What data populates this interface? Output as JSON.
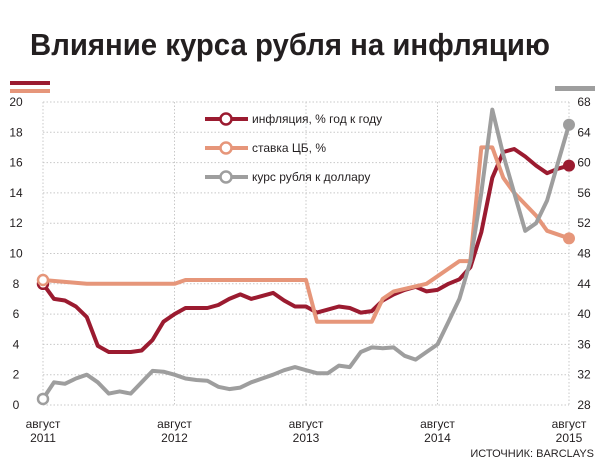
{
  "chart_data": {
    "type": "line",
    "title": "Влияние курса рубля на инфляцию",
    "source": "ИСТОЧНИК: BARCLAYS",
    "left_axis": {
      "ylim": [
        0,
        20
      ],
      "ticks": [
        "0",
        "2",
        "4",
        "6",
        "8",
        "10",
        "12",
        "14",
        "16",
        "18",
        "20"
      ]
    },
    "right_axis": {
      "ylim": [
        28,
        68
      ],
      "ticks": [
        "28",
        "32",
        "36",
        "40",
        "44",
        "48",
        "52",
        "56",
        "60",
        "64",
        "68"
      ]
    },
    "x_axis": {
      "range": [
        "2011-08",
        "2015-08"
      ],
      "ticks": [
        {
          "at": "2011-08",
          "line1": "август",
          "line2": "2011"
        },
        {
          "at": "2012-08",
          "line1": "август",
          "line2": "2012"
        },
        {
          "at": "2013-08",
          "line1": "август",
          "line2": "2013"
        },
        {
          "at": "2014-08",
          "line1": "август",
          "line2": "2014"
        },
        {
          "at": "2015-08",
          "line1": "август",
          "line2": "2015"
        }
      ]
    },
    "grid": true,
    "legend_position": "top-center",
    "series": [
      {
        "name": "инфляция, % год к году",
        "color": "#9b1b30",
        "axis": "left",
        "points": [
          [
            "2011-08",
            8.0
          ],
          [
            "2011-09",
            7.0
          ],
          [
            "2011-10",
            6.9
          ],
          [
            "2011-11",
            6.5
          ],
          [
            "2011-12",
            5.8
          ],
          [
            "2012-01",
            3.9
          ],
          [
            "2012-02",
            3.5
          ],
          [
            "2012-03",
            3.5
          ],
          [
            "2012-04",
            3.5
          ],
          [
            "2012-05",
            3.6
          ],
          [
            "2012-06",
            4.3
          ],
          [
            "2012-07",
            5.5
          ],
          [
            "2012-08",
            6.0
          ],
          [
            "2012-09",
            6.4
          ],
          [
            "2012-10",
            6.4
          ],
          [
            "2012-11",
            6.4
          ],
          [
            "2012-12",
            6.6
          ],
          [
            "2013-01",
            7.0
          ],
          [
            "2013-02",
            7.3
          ],
          [
            "2013-03",
            7.0
          ],
          [
            "2013-04",
            7.2
          ],
          [
            "2013-05",
            7.4
          ],
          [
            "2013-06",
            6.9
          ],
          [
            "2013-07",
            6.5
          ],
          [
            "2013-08",
            6.5
          ],
          [
            "2013-09",
            6.1
          ],
          [
            "2013-10",
            6.3
          ],
          [
            "2013-11",
            6.5
          ],
          [
            "2013-12",
            6.4
          ],
          [
            "2014-01",
            6.1
          ],
          [
            "2014-02",
            6.2
          ],
          [
            "2014-03",
            6.9
          ],
          [
            "2014-04",
            7.3
          ],
          [
            "2014-05",
            7.6
          ],
          [
            "2014-06",
            7.8
          ],
          [
            "2014-07",
            7.5
          ],
          [
            "2014-08",
            7.6
          ],
          [
            "2014-09",
            8.0
          ],
          [
            "2014-10",
            8.3
          ],
          [
            "2014-11",
            9.1
          ],
          [
            "2014-12",
            11.4
          ],
          [
            "2015-01",
            15.0
          ],
          [
            "2015-02",
            16.7
          ],
          [
            "2015-03",
            16.9
          ],
          [
            "2015-04",
            16.4
          ],
          [
            "2015-05",
            15.8
          ],
          [
            "2015-06",
            15.3
          ],
          [
            "2015-07",
            15.6
          ],
          [
            "2015-08",
            15.8
          ]
        ]
      },
      {
        "name": "ставка ЦБ, %",
        "color": "#e6967a",
        "axis": "left",
        "points": [
          [
            "2011-08",
            8.25
          ],
          [
            "2011-12",
            8.0
          ],
          [
            "2012-08",
            8.0
          ],
          [
            "2012-09",
            8.25
          ],
          [
            "2013-08",
            8.25
          ],
          [
            "2013-09",
            5.5
          ],
          [
            "2014-02",
            5.5
          ],
          [
            "2014-03",
            7.0
          ],
          [
            "2014-04",
            7.5
          ],
          [
            "2014-07",
            8.0
          ],
          [
            "2014-10",
            9.5
          ],
          [
            "2014-11",
            9.5
          ],
          [
            "2014-12",
            17.0
          ],
          [
            "2015-01",
            17.0
          ],
          [
            "2015-02",
            15.0
          ],
          [
            "2015-03",
            14.0
          ],
          [
            "2015-05",
            12.5
          ],
          [
            "2015-06",
            11.5
          ],
          [
            "2015-08",
            11.0
          ]
        ]
      },
      {
        "name": "курс рубля к доллару",
        "color": "#9e9e9e",
        "axis": "right",
        "points": [
          [
            "2011-08",
            28.8
          ],
          [
            "2011-09",
            31.0
          ],
          [
            "2011-10",
            30.8
          ],
          [
            "2011-11",
            31.5
          ],
          [
            "2011-12",
            32.0
          ],
          [
            "2012-01",
            31.0
          ],
          [
            "2012-02",
            29.5
          ],
          [
            "2012-03",
            29.8
          ],
          [
            "2012-04",
            29.5
          ],
          [
            "2012-05",
            31.0
          ],
          [
            "2012-06",
            32.5
          ],
          [
            "2012-07",
            32.4
          ],
          [
            "2012-08",
            32.0
          ],
          [
            "2012-09",
            31.5
          ],
          [
            "2012-10",
            31.3
          ],
          [
            "2012-11",
            31.2
          ],
          [
            "2012-12",
            30.4
          ],
          [
            "2013-01",
            30.1
          ],
          [
            "2013-02",
            30.3
          ],
          [
            "2013-03",
            31.0
          ],
          [
            "2013-04",
            31.5
          ],
          [
            "2013-05",
            32.0
          ],
          [
            "2013-06",
            32.6
          ],
          [
            "2013-07",
            33.0
          ],
          [
            "2013-08",
            32.6
          ],
          [
            "2013-09",
            32.2
          ],
          [
            "2013-10",
            32.2
          ],
          [
            "2013-11",
            33.2
          ],
          [
            "2013-12",
            33.0
          ],
          [
            "2014-01",
            35.0
          ],
          [
            "2014-02",
            35.6
          ],
          [
            "2014-03",
            35.5
          ],
          [
            "2014-04",
            35.6
          ],
          [
            "2014-05",
            34.5
          ],
          [
            "2014-06",
            34.0
          ],
          [
            "2014-07",
            35.0
          ],
          [
            "2014-08",
            36.0
          ],
          [
            "2014-09",
            39.0
          ],
          [
            "2014-10",
            42.0
          ],
          [
            "2014-11",
            47.0
          ],
          [
            "2014-12",
            56.0
          ],
          [
            "2015-01",
            67.0
          ],
          [
            "2015-02",
            61.0
          ],
          [
            "2015-03",
            56.0
          ],
          [
            "2015-04",
            51.0
          ],
          [
            "2015-05",
            52.0
          ],
          [
            "2015-06",
            55.0
          ],
          [
            "2015-07",
            60.0
          ],
          [
            "2015-08",
            65.0
          ]
        ]
      }
    ]
  }
}
